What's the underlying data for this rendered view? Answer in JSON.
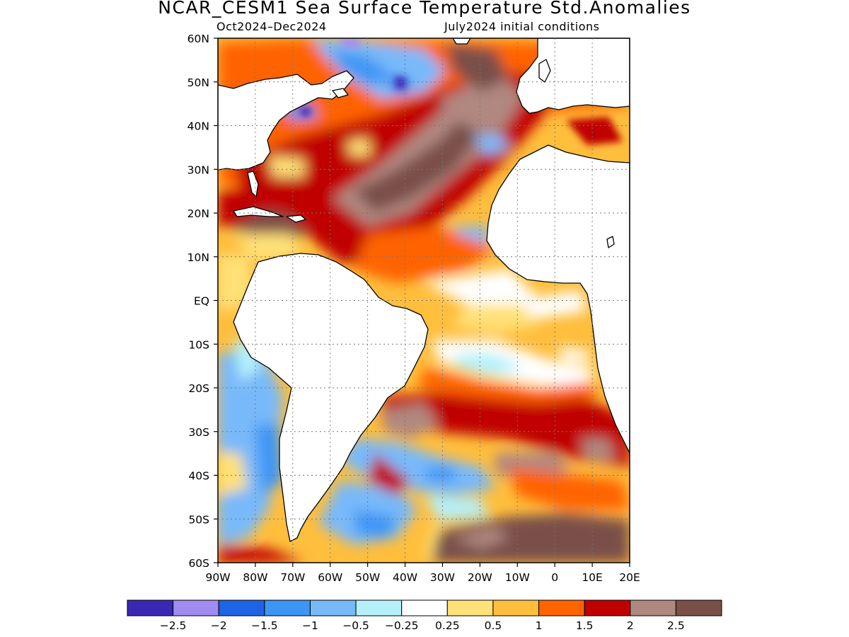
{
  "title": "NCAR_CESM1 Sea Surface Temperature Std.Anomalies",
  "subtitle_left": "Oct2024–Dec2024",
  "subtitle_right": "July2024 initial conditions",
  "map": {
    "lon_range": [
      -90,
      20
    ],
    "lat_range": [
      -60,
      60
    ],
    "grid": true,
    "lat_labels": [
      {
        "lat": 60,
        "text": "60N"
      },
      {
        "lat": 50,
        "text": "50N"
      },
      {
        "lat": 40,
        "text": "40N"
      },
      {
        "lat": 30,
        "text": "30N"
      },
      {
        "lat": 20,
        "text": "20N"
      },
      {
        "lat": 10,
        "text": "10N"
      },
      {
        "lat": 0,
        "text": "EQ"
      },
      {
        "lat": -10,
        "text": "10S"
      },
      {
        "lat": -20,
        "text": "20S"
      },
      {
        "lat": -30,
        "text": "30S"
      },
      {
        "lat": -40,
        "text": "40S"
      },
      {
        "lat": -50,
        "text": "50S"
      },
      {
        "lat": -60,
        "text": "60S"
      }
    ],
    "lon_labels": [
      {
        "lon": -90,
        "text": "90W"
      },
      {
        "lon": -80,
        "text": "80W"
      },
      {
        "lon": -70,
        "text": "70W"
      },
      {
        "lon": -60,
        "text": "60W"
      },
      {
        "lon": -50,
        "text": "50W"
      },
      {
        "lon": -40,
        "text": "40W"
      },
      {
        "lon": -30,
        "text": "30W"
      },
      {
        "lon": -20,
        "text": "20W"
      },
      {
        "lon": -10,
        "text": "10W"
      },
      {
        "lon": 0,
        "text": "0"
      },
      {
        "lon": 10,
        "text": "10E"
      },
      {
        "lon": 20,
        "text": "20E"
      }
    ]
  },
  "colorbar": {
    "colors": [
      "#3a28b4",
      "#a08cf0",
      "#1e64e6",
      "#3c96f5",
      "#78b9fa",
      "#b4f0fa",
      "#ffffff",
      "#ffe178",
      "#ffbe3c",
      "#ff6400",
      "#c00000",
      "#b08880",
      "#7a5048"
    ],
    "labels": [
      "−2.5",
      "−2",
      "−1.5",
      "−1",
      "−0.5",
      "−0.25",
      "0.25",
      "0.5",
      "1",
      "1.5",
      "2",
      "2.5"
    ]
  }
}
